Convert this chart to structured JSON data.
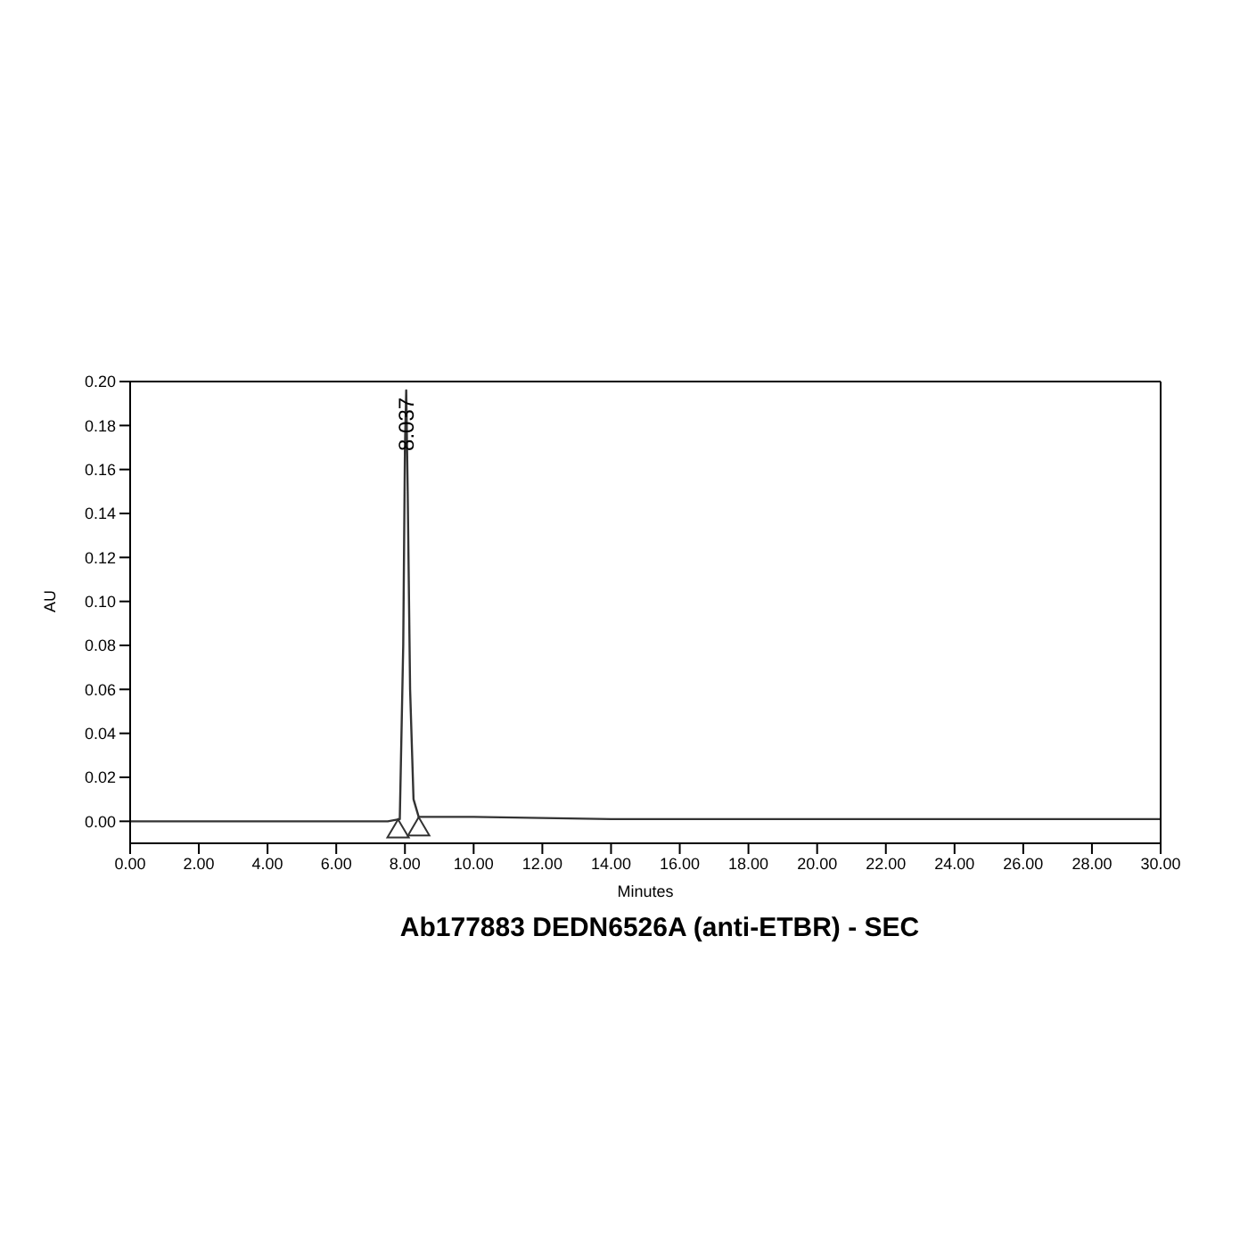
{
  "chart_data": {
    "type": "line",
    "title": "Ab177883 DEDN6526A (anti-ETBR) - SEC",
    "xlabel": "Minutes",
    "ylabel": "AU",
    "xlim": [
      0,
      30
    ],
    "ylim": [
      -0.01,
      0.2
    ],
    "xticks": [
      {
        "value": 0,
        "label": "0.00"
      },
      {
        "value": 2,
        "label": "2.00"
      },
      {
        "value": 4,
        "label": "4.00"
      },
      {
        "value": 6,
        "label": "6.00"
      },
      {
        "value": 8,
        "label": "8.00"
      },
      {
        "value": 10,
        "label": "10.00"
      },
      {
        "value": 12,
        "label": "12.00"
      },
      {
        "value": 14,
        "label": "14.00"
      },
      {
        "value": 16,
        "label": "16.00"
      },
      {
        "value": 18,
        "label": "18.00"
      },
      {
        "value": 20,
        "label": "20.00"
      },
      {
        "value": 22,
        "label": "22.00"
      },
      {
        "value": 24,
        "label": "24.00"
      },
      {
        "value": 26,
        "label": "26.00"
      },
      {
        "value": 28,
        "label": "28.00"
      },
      {
        "value": 30,
        "label": "30.00"
      }
    ],
    "yticks": [
      {
        "value": 0,
        "label": "0.00"
      },
      {
        "value": 0.02,
        "label": "0.02"
      },
      {
        "value": 0.04,
        "label": "0.04"
      },
      {
        "value": 0.06,
        "label": "0.06"
      },
      {
        "value": 0.08,
        "label": "0.08"
      },
      {
        "value": 0.1,
        "label": "0.10"
      },
      {
        "value": 0.12,
        "label": "0.12"
      },
      {
        "value": 0.14,
        "label": "0.14"
      },
      {
        "value": 0.16,
        "label": "0.16"
      },
      {
        "value": 0.18,
        "label": "0.18"
      },
      {
        "value": 0.2,
        "label": "0.20"
      }
    ],
    "grid": false,
    "legend": false,
    "series": [
      {
        "color": "#333333",
        "marker": "none",
        "x": [
          0,
          4,
          6,
          7.5,
          7.85,
          7.95,
          8.0,
          8.037,
          8.08,
          8.15,
          8.25,
          8.4,
          10,
          14,
          18,
          30
        ],
        "values": [
          0,
          0,
          0,
          0,
          0.001,
          0.08,
          0.17,
          0.196,
          0.15,
          0.06,
          0.01,
          0.002,
          0.002,
          0.001,
          0.001,
          0.001
        ]
      },
      {
        "type": "scatter",
        "color": "#333333",
        "marker": "triangle",
        "x": [
          7.8,
          8.4
        ],
        "values": [
          -0.004,
          -0.003
        ]
      }
    ],
    "annotations": [
      {
        "text": "8.037",
        "x": 8.037,
        "y": 0.196
      }
    ]
  }
}
